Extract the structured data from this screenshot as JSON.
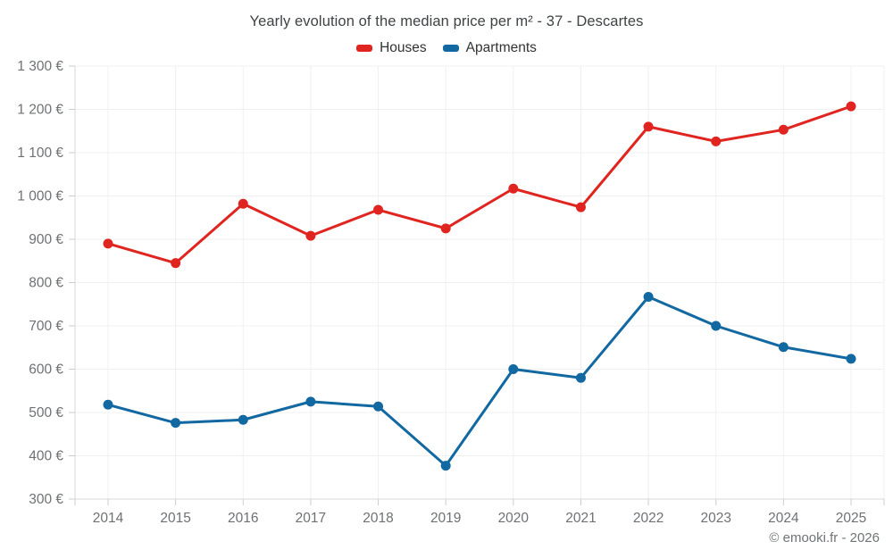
{
  "page": {
    "title": "Yearly evolution of the median price per m² - 37 - Descartes",
    "footer_credit": "© emooki.fr - 2026"
  },
  "chart_data": {
    "type": "line",
    "title": "Yearly evolution of the median price per m² - 37 - Descartes",
    "categories": [
      "2014",
      "2015",
      "2016",
      "2017",
      "2018",
      "2019",
      "2020",
      "2021",
      "2022",
      "2023",
      "2024",
      "2025"
    ],
    "series": [
      {
        "name": "Houses",
        "color": "#e02520",
        "values": [
          890,
          845,
          982,
          908,
          968,
          925,
          1017,
          974,
          1160,
          1126,
          1153,
          1207
        ]
      },
      {
        "name": "Apartments",
        "color": "#1268a0",
        "values": [
          518,
          476,
          483,
          525,
          514,
          377,
          600,
          580,
          767,
          700,
          651,
          624
        ]
      }
    ],
    "xlabel": "",
    "ylabel": "",
    "ylim": [
      300,
      1300
    ],
    "y_ticks": [
      {
        "value": 300,
        "label": "300 €"
      },
      {
        "value": 400,
        "label": "400 €"
      },
      {
        "value": 500,
        "label": "500 €"
      },
      {
        "value": 600,
        "label": "600 €"
      },
      {
        "value": 700,
        "label": "700 €"
      },
      {
        "value": 800,
        "label": "800 €"
      },
      {
        "value": 900,
        "label": "900 €"
      },
      {
        "value": 1000,
        "label": "1 000 €"
      },
      {
        "value": 1100,
        "label": "1 100 €"
      },
      {
        "value": 1200,
        "label": "1 200 €"
      },
      {
        "value": 1300,
        "label": "1 300 €"
      }
    ],
    "grid": true,
    "legend_position": "top"
  },
  "colors": {
    "background": "#ffffff",
    "grid": "#f0f0f0",
    "axis": "#dadada",
    "tick": "#cccccc",
    "tick_label": "#6e7275",
    "title": "#3f4346",
    "legend_text": "#333333",
    "footer": "#6f7477"
  }
}
